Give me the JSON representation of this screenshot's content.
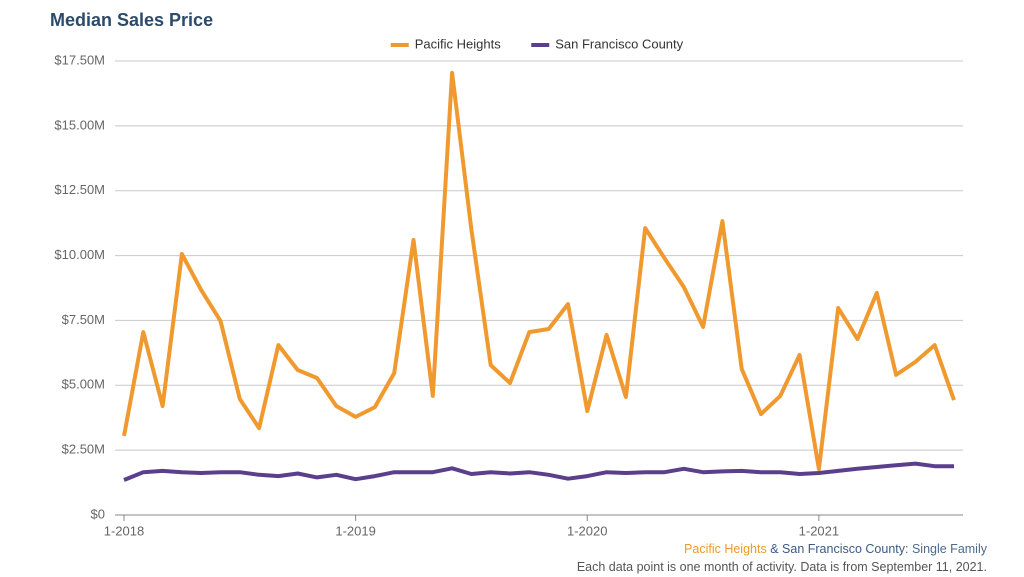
{
  "chart_data": {
    "type": "line",
    "title": "Median Sales Price",
    "categories": [
      "1-2018",
      null,
      null,
      null,
      null,
      null,
      null,
      null,
      null,
      null,
      null,
      null,
      "1-2019",
      null,
      null,
      null,
      null,
      null,
      null,
      null,
      null,
      null,
      null,
      null,
      "1-2020",
      null,
      null,
      null,
      null,
      null,
      null,
      null,
      null,
      null,
      null,
      null,
      "1-2021",
      null,
      null,
      null,
      null,
      null,
      null,
      null
    ],
    "series": [
      {
        "name": "Pacific Heights",
        "color": "#f0992f",
        "values": [
          3050000,
          7050000,
          4200000,
          10060000,
          8670000,
          7480000,
          4470000,
          3350000,
          6550000,
          5590000,
          5280000,
          4200000,
          3780000,
          4160000,
          5470000,
          10600000,
          4590000,
          17040000,
          11000000,
          5780000,
          5090000,
          7050000,
          7170000,
          8130000,
          4010000,
          6940000,
          4550000,
          11060000,
          9900000,
          8790000,
          7250000,
          11330000,
          5630000,
          3890000,
          4590000,
          6170000,
          1770000,
          7980000,
          6780000,
          8560000,
          5400000,
          5900000,
          6550000,
          4430000
        ]
      },
      {
        "name": "San Francisco County",
        "color": "#5b3f8c",
        "values": [
          1350000,
          1650000,
          1700000,
          1650000,
          1620000,
          1650000,
          1650000,
          1550000,
          1500000,
          1600000,
          1450000,
          1550000,
          1380000,
          1500000,
          1650000,
          1650000,
          1650000,
          1800000,
          1580000,
          1650000,
          1600000,
          1650000,
          1550000,
          1400000,
          1500000,
          1650000,
          1620000,
          1650000,
          1650000,
          1780000,
          1650000,
          1680000,
          1700000,
          1650000,
          1650000,
          1580000,
          1620000,
          1700000,
          1780000,
          1850000,
          1920000,
          1980000,
          1880000,
          1880000
        ]
      }
    ],
    "ylim": [
      0,
      17500000
    ],
    "yticks": [
      {
        "value": 0,
        "label": "$0"
      },
      {
        "value": 2500000,
        "label": "$2.50M"
      },
      {
        "value": 5000000,
        "label": "$5.00M"
      },
      {
        "value": 7500000,
        "label": "$7.50M"
      },
      {
        "value": 10000000,
        "label": "$10.00M"
      },
      {
        "value": 12500000,
        "label": "$12.50M"
      },
      {
        "value": 15000000,
        "label": "$15.00M"
      },
      {
        "value": 17500000,
        "label": "$17.50M"
      }
    ],
    "grid": true,
    "legend": "top",
    "footnote": [
      "Pacific Heights",
      "&",
      "San Francisco County",
      ": Single Family"
    ],
    "note": "Each data point is one month of activity. Data is from September 11, 2021."
  }
}
